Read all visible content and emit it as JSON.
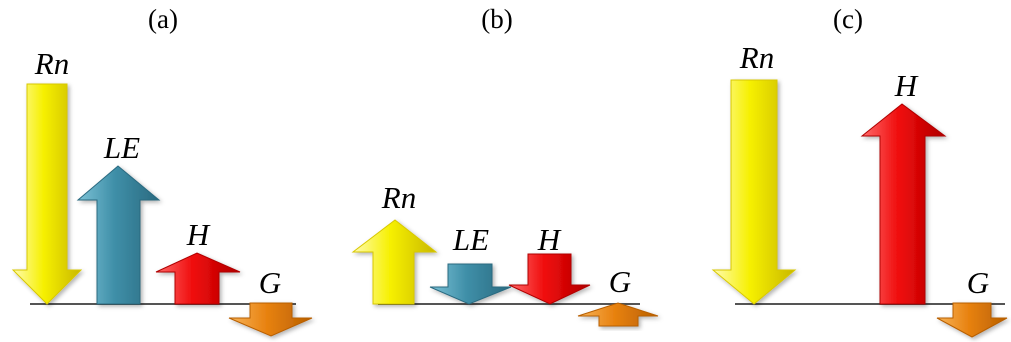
{
  "colors": {
    "Rn": "#f6f000",
    "LE": "#3f8fa8",
    "H": "#ef0a0a",
    "G": "#e88210",
    "baseline": "#555555"
  },
  "panels": [
    {
      "id": "a",
      "label": "(a)",
      "arrows": [
        {
          "name": "Rn",
          "label": "Rn",
          "direction": "down",
          "color_key": "Rn"
        },
        {
          "name": "LE",
          "label": "LE",
          "direction": "up",
          "color_key": "LE"
        },
        {
          "name": "H",
          "label": "H",
          "direction": "up",
          "color_key": "H"
        },
        {
          "name": "G",
          "label": "G",
          "direction": "down",
          "color_key": "G"
        }
      ]
    },
    {
      "id": "b",
      "label": "(b)",
      "arrows": [
        {
          "name": "Rn",
          "label": "Rn",
          "direction": "up",
          "color_key": "Rn"
        },
        {
          "name": "LE",
          "label": "LE",
          "direction": "down",
          "color_key": "LE"
        },
        {
          "name": "H",
          "label": "H",
          "direction": "down",
          "color_key": "H"
        },
        {
          "name": "G",
          "label": "G",
          "direction": "up",
          "color_key": "G"
        }
      ]
    },
    {
      "id": "c",
      "label": "(c)",
      "arrows": [
        {
          "name": "Rn",
          "label": "Rn",
          "direction": "down",
          "color_key": "Rn"
        },
        {
          "name": "H",
          "label": "H",
          "direction": "up",
          "color_key": "H"
        },
        {
          "name": "G",
          "label": "G",
          "direction": "down",
          "color_key": "G"
        }
      ]
    }
  ]
}
